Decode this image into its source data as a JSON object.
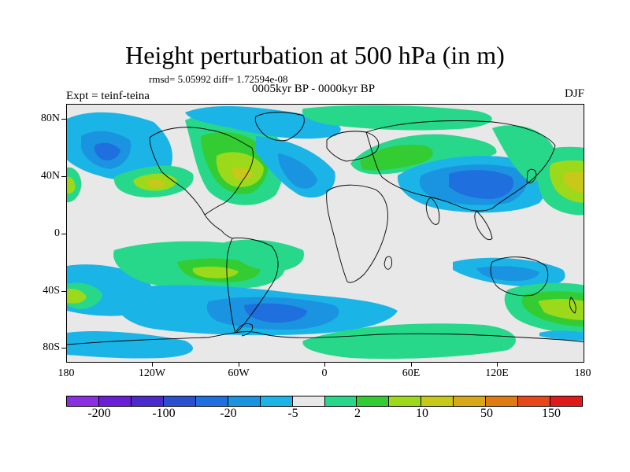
{
  "title": "Height perturbation at 500 hPa (in m)",
  "stats": "rmsd= 5.05992 diff= 1.72594e-08",
  "period": "0005kyr BP - 0000kyr BP",
  "experiment": "Expt = teinf-teina",
  "season": "DJF",
  "lat_labels": [
    "80N",
    "40N",
    "0",
    "40S",
    "80S"
  ],
  "lon_labels": [
    "180",
    "120W",
    "60W",
    "0",
    "60E",
    "120E",
    "180"
  ],
  "colorbar": {
    "colors": [
      "#8b2fe0",
      "#6a1fd6",
      "#4b2acb",
      "#2a4fcf",
      "#1f6fdf",
      "#1a94e0",
      "#1ab5e6",
      "#e8e8e8",
      "#27d88a",
      "#33cc33",
      "#9cd91a",
      "#c8c81a",
      "#d9a818",
      "#e07a14",
      "#e6481a",
      "#e01a1a"
    ],
    "labels": [
      "-200",
      "-100",
      "-20",
      "-5",
      "2",
      "10",
      "50",
      "150"
    ]
  },
  "map_colors": {
    "background": "#e8e8e8",
    "light_blue": "#1ab5e6",
    "mid_blue": "#1a94e0",
    "dark_blue": "#1f6fdf",
    "teal_green": "#27d88a",
    "green": "#33cc33",
    "yellow_green": "#9cd91a",
    "yellow": "#c8c81a"
  }
}
